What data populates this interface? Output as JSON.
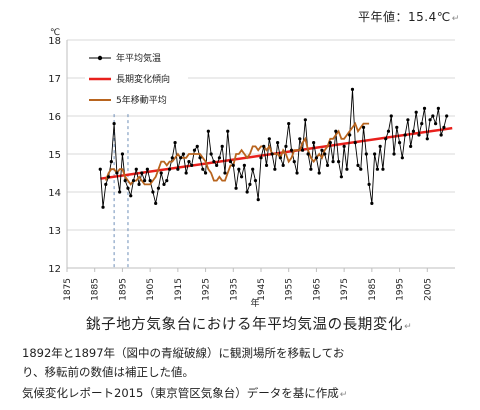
{
  "normal_label": "平年値：15.4℃",
  "caption_title": "銚子地方気象台における年平均気温の長期変化",
  "notes": [
    "1892年と1897年（図中の青縦破線）に観測場所を移転してお",
    "り、移転前の数値は補正した値。",
    "気候変化レポート2015（東京管区気象台）データを基に作成"
  ],
  "chart_data": {
    "type": "line",
    "ylabel": "℃",
    "xlabel": "年",
    "xlim": [
      1875,
      2015
    ],
    "ylim": [
      12,
      18
    ],
    "x_ticks": [
      1875,
      1885,
      1895,
      1905,
      1915,
      1925,
      1935,
      1945,
      1955,
      1965,
      1975,
      1985,
      1995,
      2005
    ],
    "y_ticks": [
      12,
      13,
      14,
      15,
      16,
      17,
      18
    ],
    "grid": "horizontal",
    "legend_position": "top-left",
    "relocation_years": [
      1892,
      1897
    ],
    "series": [
      {
        "name": "年平均気温",
        "color": "#000000",
        "x_start": 1887,
        "values": [
          14.6,
          13.6,
          14.2,
          14.4,
          14.8,
          15.8,
          14.5,
          14.0,
          15.0,
          14.3,
          14.1,
          13.9,
          14.3,
          14.6,
          14.2,
          14.5,
          14.3,
          14.6,
          14.3,
          14.0,
          13.7,
          14.1,
          14.5,
          14.2,
          14.3,
          14.6,
          14.9,
          15.3,
          14.6,
          14.9,
          15.0,
          14.5,
          14.8,
          14.7,
          15.1,
          15.2,
          14.9,
          14.6,
          14.5,
          15.6,
          15.0,
          14.8,
          14.7,
          14.9,
          15.2,
          14.5,
          15.6,
          14.8,
          14.7,
          14.1,
          14.6,
          14.4,
          14.7,
          14.0,
          14.2,
          14.6,
          14.3,
          13.8,
          14.9,
          15.2,
          14.7,
          15.4,
          15.0,
          14.6,
          15.3,
          14.9,
          14.7,
          15.2,
          15.8,
          15.1,
          14.8,
          14.5,
          15.4,
          15.1,
          15.9,
          15.0,
          14.6,
          15.3,
          14.9,
          14.5,
          15.1,
          15.0,
          14.7,
          15.3,
          14.8,
          15.6,
          14.8,
          14.4,
          15.2,
          14.6,
          15.5,
          16.7,
          15.3,
          14.7,
          14.6,
          15.7,
          15.0,
          14.2,
          13.7,
          15.0,
          14.6,
          15.2,
          14.6,
          15.4,
          15.6,
          16.0,
          15.0,
          15.7,
          15.3,
          14.9,
          15.5,
          15.9,
          15.2,
          15.6,
          16.1,
          15.5,
          15.8,
          16.2,
          15.4,
          15.9,
          16.0,
          15.8,
          16.2,
          15.5,
          15.7,
          16.0
        ]
      },
      {
        "name": "長期変化傾向",
        "color": "#e8201c",
        "x": [
          1887,
          2014
        ],
        "values": [
          14.35,
          15.68
        ]
      },
      {
        "name": "5年移動平均",
        "color": "#b8641e",
        "x_start": 1889,
        "values": [
          14.3,
          14.5,
          14.6,
          14.6,
          14.5,
          14.6,
          14.6,
          14.4,
          14.3,
          14.2,
          14.3,
          14.3,
          14.4,
          14.3,
          14.2,
          14.2,
          14.2,
          14.3,
          14.4,
          14.6,
          14.8,
          14.8,
          14.7,
          14.8,
          14.8,
          14.9,
          15.0,
          14.9,
          14.9,
          14.9,
          15.0,
          15.0,
          15.0,
          15.0,
          15.0,
          14.9,
          14.8,
          14.6,
          14.5,
          14.3,
          14.3,
          14.4,
          14.3,
          14.3,
          14.5,
          14.7,
          14.7,
          15.0,
          15.0,
          15.1,
          15.0,
          14.9,
          15.0,
          15.2,
          15.2,
          15.1,
          15.2,
          15.2,
          15.1,
          15.2,
          15.0,
          15.0,
          15.0,
          14.9,
          15.1,
          15.0,
          14.8,
          14.9,
          15.1,
          15.1,
          15.1,
          15.3,
          15.4,
          15.1,
          14.9,
          14.8,
          14.9,
          15.0,
          14.9,
          15.1,
          15.2,
          15.4,
          15.4,
          15.5,
          15.6,
          15.4,
          15.4,
          15.5,
          15.6,
          15.7,
          15.8,
          15.6,
          15.7,
          15.8,
          15.8,
          15.8
        ]
      }
    ]
  }
}
